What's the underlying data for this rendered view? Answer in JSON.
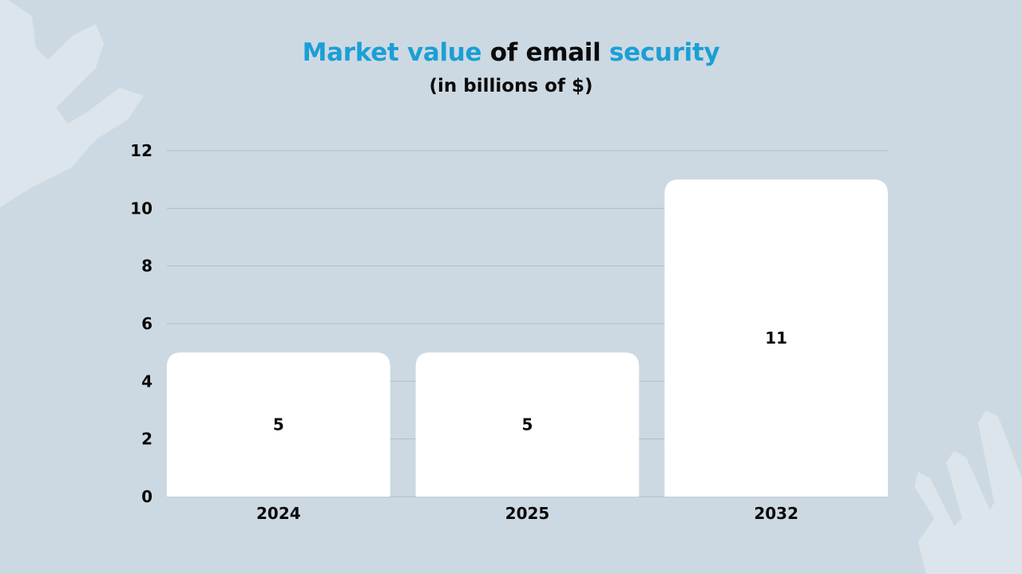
{
  "title": {
    "parts": [
      {
        "text": "Market value",
        "accent": true
      },
      {
        "text": " of email ",
        "accent": false
      },
      {
        "text": "security",
        "accent": true
      }
    ]
  },
  "subtitle": "(in billions of $)",
  "colors": {
    "background": "#cdd9e2",
    "accent": "#1a9fd6",
    "text": "#0a0a0a",
    "bar": "#ffffff",
    "grid": "#aebcc8"
  },
  "chart_data": {
    "type": "bar",
    "title": "Market value of email security",
    "subtitle": "(in billions of $)",
    "xlabel": "",
    "ylabel": "",
    "categories": [
      "2024",
      "2025",
      "2032"
    ],
    "values": [
      5,
      5,
      11
    ],
    "data_labels": [
      "5",
      "5",
      "11"
    ],
    "ylim": [
      0,
      12
    ],
    "yticks": [
      0,
      2,
      4,
      6,
      8,
      10,
      12
    ],
    "ytick_labels": [
      "0",
      "2",
      "4",
      "6",
      "8",
      "10",
      "12"
    ],
    "grid": true,
    "legend": "none"
  }
}
